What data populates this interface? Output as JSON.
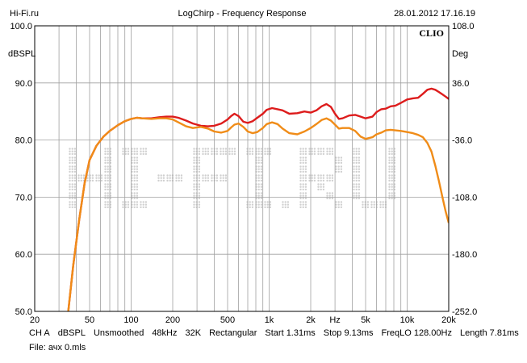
{
  "header": {
    "left": "Hi-Fi.ru",
    "center": "LogChirp - Frequency Response",
    "right": "28.01.2012 17.16.19"
  },
  "brand": "CLIO",
  "watermark": "Hi-Fi.ru",
  "chart_data": {
    "type": "line",
    "title": "LogChirp - Frequency Response",
    "ylabel_left": "dBSPL",
    "ylabel_right": "Deg",
    "xscale": "log",
    "xlim": [
      20,
      20000
    ],
    "ylim": [
      50,
      100
    ],
    "ylim_right": [
      -252,
      108
    ],
    "grid": true,
    "x_ticks": [
      {
        "value": 20,
        "label": "20"
      },
      {
        "value": 50,
        "label": "50"
      },
      {
        "value": 100,
        "label": "100"
      },
      {
        "value": 200,
        "label": "200"
      },
      {
        "value": 500,
        "label": "500"
      },
      {
        "value": 1000,
        "label": "1k"
      },
      {
        "value": 2000,
        "label": "2k"
      },
      {
        "value": 3000,
        "label": "Hz"
      },
      {
        "value": 5000,
        "label": "5k"
      },
      {
        "value": 10000,
        "label": "10k"
      },
      {
        "value": 20000,
        "label": "20k"
      }
    ],
    "y_ticks_left": [
      {
        "value": 100,
        "label": "100.0"
      },
      {
        "value": 90,
        "label": "90.0"
      },
      {
        "value": 80,
        "label": "80.0"
      },
      {
        "value": 70,
        "label": "70.0"
      },
      {
        "value": 60,
        "label": "60.0"
      },
      {
        "value": 50,
        "label": "50.0"
      }
    ],
    "y_ticks_right": [
      {
        "value": 108,
        "label": "108.0"
      },
      {
        "value": 36,
        "label": "36.0"
      },
      {
        "value": -36,
        "label": "-36.0"
      },
      {
        "value": -108,
        "label": "-108.0"
      },
      {
        "value": -180,
        "label": "-180.0"
      },
      {
        "value": -252,
        "label": "-252.0"
      }
    ],
    "series": [
      {
        "color": "#dd1c1c",
        "points": [
          [
            35,
            50
          ],
          [
            38,
            58
          ],
          [
            42,
            66
          ],
          [
            46,
            72.5
          ],
          [
            50,
            76.5
          ],
          [
            56,
            79
          ],
          [
            63,
            80.6
          ],
          [
            70,
            81.6
          ],
          [
            80,
            82.6
          ],
          [
            90,
            83.3
          ],
          [
            100,
            83.7
          ],
          [
            110,
            83.9
          ],
          [
            120,
            83.8
          ],
          [
            140,
            83.8
          ],
          [
            160,
            84.0
          ],
          [
            180,
            84.1
          ],
          [
            200,
            84.1
          ],
          [
            220,
            83.9
          ],
          [
            250,
            83.4
          ],
          [
            280,
            82.9
          ],
          [
            320,
            82.5
          ],
          [
            360,
            82.4
          ],
          [
            400,
            82.5
          ],
          [
            450,
            82.9
          ],
          [
            500,
            83.6
          ],
          [
            530,
            84.2
          ],
          [
            560,
            84.6
          ],
          [
            600,
            84.2
          ],
          [
            650,
            83.2
          ],
          [
            700,
            83.0
          ],
          [
            760,
            83.3
          ],
          [
            820,
            83.9
          ],
          [
            900,
            84.6
          ],
          [
            960,
            85.3
          ],
          [
            1050,
            85.6
          ],
          [
            1150,
            85.4
          ],
          [
            1250,
            85.2
          ],
          [
            1400,
            84.6
          ],
          [
            1600,
            84.7
          ],
          [
            1800,
            85.0
          ],
          [
            2000,
            84.8
          ],
          [
            2200,
            85.2
          ],
          [
            2400,
            85.9
          ],
          [
            2600,
            86.3
          ],
          [
            2800,
            85.8
          ],
          [
            3000,
            84.6
          ],
          [
            3200,
            83.7
          ],
          [
            3400,
            83.8
          ],
          [
            3800,
            84.3
          ],
          [
            4200,
            84.4
          ],
          [
            4600,
            84.1
          ],
          [
            5000,
            83.8
          ],
          [
            5600,
            84.1
          ],
          [
            6000,
            84.9
          ],
          [
            6500,
            85.4
          ],
          [
            7000,
            85.5
          ],
          [
            7600,
            85.9
          ],
          [
            8200,
            86.0
          ],
          [
            9000,
            86.5
          ],
          [
            10000,
            87.1
          ],
          [
            11000,
            87.3
          ],
          [
            12000,
            87.4
          ],
          [
            13000,
            88.1
          ],
          [
            14000,
            88.8
          ],
          [
            15000,
            89.0
          ],
          [
            16000,
            88.8
          ],
          [
            17000,
            88.4
          ],
          [
            18000,
            88.0
          ],
          [
            19000,
            87.6
          ],
          [
            20000,
            87.2
          ]
        ]
      },
      {
        "color": "#f08c18",
        "points": [
          [
            35,
            50
          ],
          [
            38,
            58
          ],
          [
            42,
            66
          ],
          [
            46,
            72.5
          ],
          [
            50,
            76.5
          ],
          [
            56,
            79
          ],
          [
            63,
            80.6
          ],
          [
            70,
            81.6
          ],
          [
            80,
            82.6
          ],
          [
            90,
            83.3
          ],
          [
            100,
            83.7
          ],
          [
            110,
            83.9
          ],
          [
            120,
            83.8
          ],
          [
            140,
            83.7
          ],
          [
            160,
            83.8
          ],
          [
            180,
            83.8
          ],
          [
            200,
            83.6
          ],
          [
            220,
            83.1
          ],
          [
            250,
            82.4
          ],
          [
            280,
            82.1
          ],
          [
            320,
            82.3
          ],
          [
            360,
            82.0
          ],
          [
            400,
            81.5
          ],
          [
            450,
            81.3
          ],
          [
            500,
            81.6
          ],
          [
            530,
            82.2
          ],
          [
            560,
            82.7
          ],
          [
            600,
            82.9
          ],
          [
            650,
            82.3
          ],
          [
            700,
            81.5
          ],
          [
            760,
            81.2
          ],
          [
            820,
            81.4
          ],
          [
            900,
            82.1
          ],
          [
            960,
            82.8
          ],
          [
            1050,
            83.1
          ],
          [
            1150,
            82.8
          ],
          [
            1250,
            82.0
          ],
          [
            1400,
            81.2
          ],
          [
            1600,
            81.0
          ],
          [
            1800,
            81.5
          ],
          [
            2000,
            82.1
          ],
          [
            2200,
            82.8
          ],
          [
            2400,
            83.5
          ],
          [
            2600,
            83.8
          ],
          [
            2800,
            83.4
          ],
          [
            3000,
            82.7
          ],
          [
            3200,
            82.0
          ],
          [
            3400,
            82.1
          ],
          [
            3800,
            82.1
          ],
          [
            4200,
            81.6
          ],
          [
            4600,
            80.6
          ],
          [
            5000,
            80.2
          ],
          [
            5600,
            80.5
          ],
          [
            6000,
            81.0
          ],
          [
            6500,
            81.3
          ],
          [
            7000,
            81.7
          ],
          [
            7600,
            81.8
          ],
          [
            8200,
            81.7
          ],
          [
            9000,
            81.6
          ],
          [
            10000,
            81.4
          ],
          [
            11000,
            81.2
          ],
          [
            12000,
            80.9
          ],
          [
            13000,
            80.5
          ],
          [
            14000,
            79.5
          ],
          [
            15000,
            78.0
          ],
          [
            16000,
            75.5
          ],
          [
            17000,
            72.8
          ],
          [
            18000,
            70.0
          ],
          [
            19000,
            67.5
          ],
          [
            20000,
            65.5
          ]
        ]
      }
    ]
  },
  "info_line": [
    "CH A",
    "dBSPL",
    "Unsmoothed",
    "48kHz",
    "32K",
    "Rectangular",
    "Start 1.31ms",
    "Stop 9.13ms",
    "FreqLO 128.00Hz",
    "Length 7.81ms"
  ],
  "file_line": "File: ачх 0.mls"
}
